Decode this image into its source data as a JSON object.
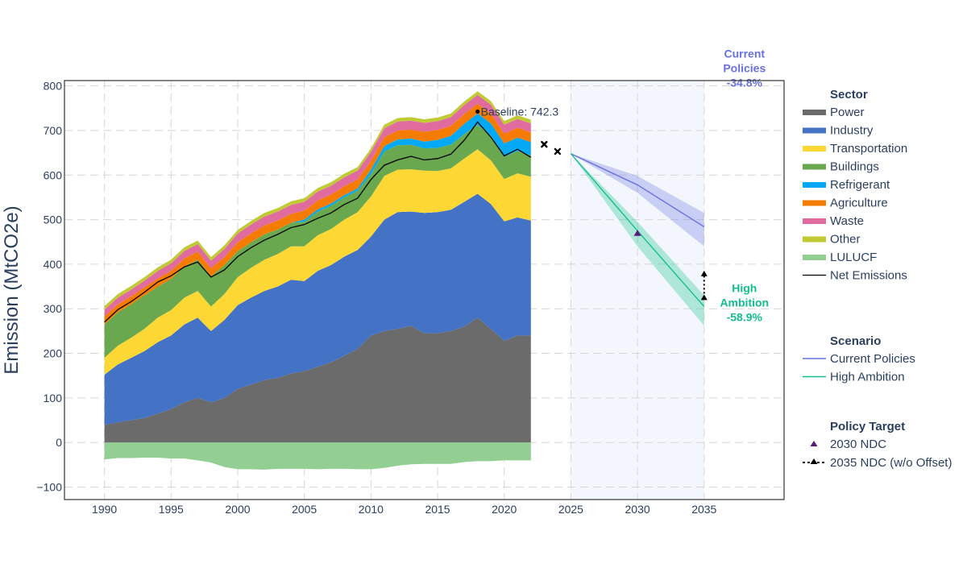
{
  "chart_data": {
    "type": "area",
    "ylabel": "Emission (MtCO2e)",
    "xlim": [
      1987,
      2041
    ],
    "ylim": [
      -128,
      812
    ],
    "x_ticks": [
      1990,
      1995,
      2000,
      2005,
      2010,
      2015,
      2020,
      2025,
      2030,
      2035
    ],
    "y_ticks": [
      -100,
      0,
      100,
      200,
      300,
      400,
      500,
      600,
      700,
      800
    ],
    "projection_band": [
      2025,
      2035
    ],
    "years": [
      1990,
      1991,
      1992,
      1993,
      1994,
      1995,
      1996,
      1997,
      1998,
      1999,
      2000,
      2001,
      2002,
      2003,
      2004,
      2005,
      2006,
      2007,
      2008,
      2009,
      2010,
      2011,
      2012,
      2013,
      2014,
      2015,
      2016,
      2017,
      2018,
      2019,
      2020,
      2021,
      2022
    ],
    "sectors": [
      {
        "name": "Power",
        "color": "#6b6b6b",
        "values": [
          40,
          45,
          50,
          55,
          65,
          75,
          90,
          100,
          90,
          100,
          120,
          130,
          140,
          145,
          155,
          160,
          170,
          180,
          195,
          210,
          240,
          250,
          255,
          262,
          245,
          245,
          250,
          260,
          280,
          255,
          228,
          240,
          240
        ]
      },
      {
        "name": "Industry",
        "color": "#4472c4",
        "values": [
          112,
          130,
          140,
          150,
          160,
          165,
          175,
          180,
          160,
          175,
          188,
          195,
          200,
          205,
          210,
          202,
          215,
          218,
          222,
          222,
          222,
          250,
          262,
          256,
          270,
          272,
          272,
          280,
          278,
          280,
          268,
          265,
          258
        ]
      },
      {
        "name": "Transportation",
        "color": "#fdd835",
        "values": [
          38,
          42,
          45,
          50,
          55,
          57,
          60,
          60,
          55,
          58,
          63,
          67,
          70,
          73,
          75,
          78,
          80,
          81,
          83,
          85,
          90,
          98,
          95,
          95,
          95,
          92,
          93,
          97,
          100,
          98,
          95,
          99,
          98
        ]
      },
      {
        "name": "Buildings",
        "color": "#6aa84f",
        "values": [
          75,
          75,
          75,
          75,
          70,
          70,
          70,
          70,
          68,
          65,
          58,
          57,
          57,
          55,
          53,
          55,
          53,
          52,
          50,
          48,
          50,
          55,
          55,
          55,
          50,
          52,
          53,
          55,
          55,
          55,
          50,
          50,
          48
        ]
      },
      {
        "name": "Refrigerant",
        "color": "#03a9f4",
        "values": [
          0,
          0,
          0,
          0,
          0,
          0,
          0,
          0,
          0,
          0,
          0,
          0,
          0,
          0,
          0,
          5,
          5,
          5,
          5,
          5,
          10,
          12,
          13,
          14,
          15,
          18,
          20,
          23,
          25,
          28,
          30,
          30,
          30
        ]
      },
      {
        "name": "Agriculture",
        "color": "#f57c00",
        "values": [
          18,
          18,
          18,
          18,
          18,
          18,
          18,
          18,
          18,
          18,
          20,
          20,
          20,
          20,
          20,
          20,
          20,
          20,
          20,
          20,
          20,
          20,
          20,
          20,
          22,
          22,
          22,
          22,
          22,
          22,
          22,
          22,
          22
        ]
      },
      {
        "name": "Waste",
        "color": "#e06c9f",
        "values": [
          15,
          15,
          15,
          15,
          17,
          17,
          17,
          17,
          17,
          18,
          20,
          20,
          20,
          20,
          20,
          20,
          20,
          20,
          20,
          20,
          20,
          20,
          20,
          20,
          20,
          20,
          20,
          20,
          20,
          20,
          20,
          20,
          20
        ]
      },
      {
        "name": "Other",
        "color": "#c0ca33",
        "values": [
          8,
          8,
          8,
          8,
          8,
          8,
          8,
          8,
          8,
          8,
          8,
          8,
          8,
          8,
          8,
          8,
          8,
          8,
          8,
          8,
          8,
          8,
          8,
          8,
          8,
          8,
          8,
          8,
          8,
          8,
          8,
          8,
          8
        ]
      },
      {
        "name": "LULUCF",
        "color": "#93cf93",
        "values": [
          -38,
          -35,
          -35,
          -34,
          -34,
          -36,
          -36,
          -40,
          -45,
          -55,
          -60,
          -60,
          -61,
          -59,
          -59,
          -59,
          -60,
          -59,
          -59,
          -60,
          -60,
          -57,
          -52,
          -49,
          -48,
          -48,
          -48,
          -44,
          -42,
          -42,
          -40,
          -40,
          -40
        ]
      }
    ],
    "net_emissions": {
      "name": "Net Emissions",
      "color": "#000000",
      "values": [
        270,
        298,
        316,
        337,
        360,
        374,
        394,
        405,
        371,
        387,
        417,
        437,
        454,
        467,
        482,
        489,
        503,
        515,
        534,
        548,
        590,
        622,
        634,
        642,
        634,
        637,
        647,
        678,
        719,
        685,
        643,
        658,
        640
      ]
    },
    "estimates": [
      {
        "x": 2023,
        "y": 669
      },
      {
        "x": 2024,
        "y": 653
      }
    ],
    "baseline": {
      "label": "Baseline: 742.3",
      "x": 2018,
      "y": 742.3
    },
    "scenarios": [
      {
        "name": "Current Policies",
        "color": "#6970e0",
        "band_color": "rgba(105,112,224,0.30)",
        "x": [
          2025,
          2030,
          2035
        ],
        "y": [
          648,
          578,
          484
        ],
        "lower": [
          648,
          560,
          440
        ],
        "upper": [
          648,
          598,
          515
        ],
        "label_lines": [
          "Current",
          "Policies",
          "-34.8%"
        ]
      },
      {
        "name": "High Ambition",
        "color": "#12bf8c",
        "band_color": "rgba(18,191,140,0.30)",
        "x": [
          2025,
          2030,
          2035
        ],
        "y": [
          648,
          475,
          305
        ],
        "lower": [
          648,
          440,
          262
        ],
        "upper": [
          648,
          495,
          330
        ],
        "label_lines": [
          "High",
          "Ambition",
          "-58.9%"
        ]
      }
    ],
    "ndc_2030": {
      "name": "2030 NDC",
      "x": 2030,
      "y": 470,
      "color": "#5c1a78"
    },
    "ndc_2035": {
      "name": "2035 NDC (w/o Offset)",
      "x": 2035,
      "y_low": 325,
      "y_high": 382,
      "color": "#000000"
    },
    "legend": {
      "sector_title": "Sector",
      "scenario_title": "Scenario",
      "policy_title": "Policy Target",
      "sector_items": [
        "Power",
        "Industry",
        "Transportation",
        "Buildings",
        "Refrigerant",
        "Agriculture",
        "Waste",
        "Other",
        "LULUCF",
        "Net Emissions"
      ],
      "scenario_items": [
        "Current Policies",
        "High Ambition"
      ],
      "policy_items": [
        "2030 NDC",
        "2035 NDC (w/o Offset)"
      ]
    }
  }
}
